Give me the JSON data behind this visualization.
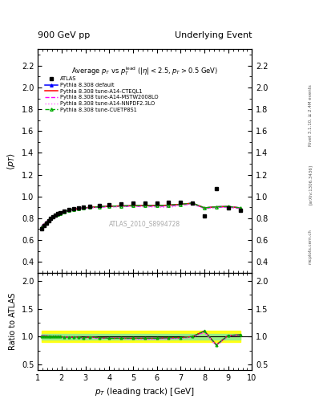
{
  "title_left": "900 GeV pp",
  "title_right": "Underlying Event",
  "plot_title": "Average $p_T$ vs $p_T^{\\mathrm{lead}}$ ($|\\eta| < 2.5$, $p_T > 0.5$ GeV)",
  "xlabel": "$p_T$ (leading track) [GeV]",
  "ylabel_main": "$\\langle p_T \\rangle$",
  "ylabel_ratio": "Ratio to ATLAS",
  "watermark": "ATLAS_2010_S8994728",
  "right_label1": "Rivet 3.1.10, ≥ 2.4M events",
  "right_label2": "[arXiv:1306.3436]",
  "right_label3": "mcplots.cern.ch",
  "xlim": [
    1,
    10
  ],
  "ylim_main": [
    0.3,
    2.35
  ],
  "ylim_ratio": [
    0.4,
    2.15
  ],
  "yticks_main": [
    0.4,
    0.6,
    0.8,
    1.0,
    1.2,
    1.4,
    1.6,
    1.8,
    2.0,
    2.2
  ],
  "yticks_ratio": [
    0.5,
    1.0,
    1.5,
    2.0
  ],
  "atlas_x": [
    1.15,
    1.25,
    1.35,
    1.45,
    1.55,
    1.65,
    1.75,
    1.85,
    1.95,
    2.1,
    2.3,
    2.5,
    2.7,
    2.9,
    3.2,
    3.6,
    4.0,
    4.5,
    5.0,
    5.5,
    6.0,
    6.5,
    7.0,
    7.5,
    8.0,
    8.5,
    9.0,
    9.5
  ],
  "atlas_y": [
    0.705,
    0.73,
    0.752,
    0.775,
    0.796,
    0.815,
    0.83,
    0.84,
    0.85,
    0.865,
    0.878,
    0.888,
    0.895,
    0.903,
    0.908,
    0.92,
    0.928,
    0.932,
    0.938,
    0.94,
    0.942,
    0.943,
    0.95,
    0.942,
    0.82,
    1.07,
    0.892,
    0.87
  ],
  "default_x": [
    1.15,
    1.25,
    1.35,
    1.45,
    1.55,
    1.65,
    1.75,
    1.85,
    1.95,
    2.1,
    2.3,
    2.5,
    2.7,
    2.9,
    3.2,
    3.6,
    4.0,
    4.5,
    5.0,
    5.5,
    6.0,
    6.5,
    7.0,
    7.5,
    8.0,
    8.5,
    9.0,
    9.5
  ],
  "default_y": [
    0.718,
    0.742,
    0.762,
    0.781,
    0.799,
    0.815,
    0.828,
    0.838,
    0.847,
    0.86,
    0.872,
    0.881,
    0.888,
    0.894,
    0.9,
    0.906,
    0.91,
    0.913,
    0.915,
    0.916,
    0.916,
    0.92,
    0.928,
    0.938,
    0.895,
    0.905,
    0.908,
    0.895
  ],
  "cteql1_x": [
    1.15,
    1.25,
    1.35,
    1.45,
    1.55,
    1.65,
    1.75,
    1.85,
    1.95,
    2.1,
    2.3,
    2.5,
    2.7,
    2.9,
    3.2,
    3.6,
    4.0,
    4.5,
    5.0,
    5.5,
    6.0,
    6.5,
    7.0,
    7.5,
    8.0,
    8.5,
    9.0,
    9.5
  ],
  "cteql1_y": [
    0.718,
    0.742,
    0.762,
    0.781,
    0.799,
    0.815,
    0.828,
    0.838,
    0.847,
    0.86,
    0.872,
    0.881,
    0.888,
    0.894,
    0.9,
    0.906,
    0.91,
    0.913,
    0.915,
    0.916,
    0.916,
    0.92,
    0.928,
    0.938,
    0.895,
    0.905,
    0.908,
    0.895
  ],
  "mstw_x": [
    1.15,
    1.25,
    1.35,
    1.45,
    1.55,
    1.65,
    1.75,
    1.85,
    1.95,
    2.1,
    2.3,
    2.5,
    2.7,
    2.9,
    3.2,
    3.6,
    4.0,
    4.5,
    5.0,
    5.5,
    6.0,
    6.5,
    7.0,
    7.5,
    8.0,
    8.5,
    9.0,
    9.5
  ],
  "mstw_y": [
    0.725,
    0.748,
    0.768,
    0.787,
    0.804,
    0.818,
    0.83,
    0.84,
    0.848,
    0.86,
    0.871,
    0.879,
    0.885,
    0.891,
    0.896,
    0.901,
    0.905,
    0.907,
    0.908,
    0.908,
    0.908,
    0.911,
    0.92,
    0.932,
    0.89,
    0.9,
    0.902,
    0.89
  ],
  "nnpdf_x": [
    1.15,
    1.25,
    1.35,
    1.45,
    1.55,
    1.65,
    1.75,
    1.85,
    1.95,
    2.1,
    2.3,
    2.5,
    2.7,
    2.9,
    3.2,
    3.6,
    4.0,
    4.5,
    5.0,
    5.5,
    6.0,
    6.5,
    7.0,
    7.5,
    8.0,
    8.5,
    9.0,
    9.5
  ],
  "nnpdf_y": [
    0.725,
    0.748,
    0.768,
    0.787,
    0.804,
    0.818,
    0.83,
    0.84,
    0.848,
    0.86,
    0.871,
    0.879,
    0.885,
    0.891,
    0.896,
    0.901,
    0.905,
    0.907,
    0.908,
    0.905,
    0.903,
    0.898,
    0.92,
    0.932,
    0.89,
    0.9,
    0.91,
    0.897
  ],
  "cuetp_x": [
    1.15,
    1.25,
    1.35,
    1.45,
    1.55,
    1.65,
    1.75,
    1.85,
    1.95,
    2.1,
    2.3,
    2.5,
    2.7,
    2.9,
    3.2,
    3.6,
    4.0,
    4.5,
    5.0,
    5.5,
    6.0,
    6.5,
    7.0,
    7.5,
    8.0,
    8.5,
    9.0,
    9.5
  ],
  "cuetp_y": [
    0.718,
    0.742,
    0.762,
    0.781,
    0.799,
    0.815,
    0.828,
    0.838,
    0.847,
    0.86,
    0.872,
    0.881,
    0.888,
    0.894,
    0.9,
    0.906,
    0.91,
    0.913,
    0.915,
    0.916,
    0.916,
    0.92,
    0.928,
    0.938,
    0.895,
    0.905,
    0.908,
    0.895
  ],
  "ratio_default_y": [
    1.0,
    1.01,
    1.01,
    1.0,
    1.0,
    1.0,
    1.0,
    1.0,
    1.0,
    0.99,
    0.99,
    0.99,
    0.99,
    0.98,
    0.99,
    0.98,
    0.97,
    0.97,
    0.97,
    0.97,
    0.97,
    0.98,
    0.98,
    1.0,
    1.1,
    0.85,
    1.02,
    1.03
  ],
  "ratio_cteql1_y": [
    1.0,
    1.01,
    1.01,
    1.0,
    1.0,
    1.0,
    1.0,
    1.0,
    1.0,
    0.99,
    0.99,
    0.99,
    0.99,
    0.98,
    0.99,
    0.98,
    0.97,
    0.97,
    0.97,
    0.97,
    0.97,
    0.98,
    0.98,
    1.0,
    1.1,
    0.85,
    1.02,
    1.03
  ],
  "ratio_mstw_y": [
    1.02,
    1.02,
    1.02,
    1.01,
    1.01,
    1.0,
    1.0,
    1.0,
    1.0,
    0.99,
    0.99,
    0.99,
    0.98,
    0.98,
    0.98,
    0.97,
    0.97,
    0.97,
    0.96,
    0.96,
    0.96,
    0.97,
    0.97,
    0.99,
    1.08,
    0.84,
    1.01,
    1.02
  ],
  "ratio_nnpdf_y": [
    1.02,
    1.02,
    1.02,
    1.01,
    1.01,
    1.0,
    1.0,
    1.0,
    1.0,
    0.99,
    0.99,
    0.99,
    0.98,
    0.98,
    0.98,
    0.97,
    0.97,
    0.97,
    0.96,
    0.95,
    0.95,
    0.95,
    0.97,
    0.99,
    1.08,
    0.84,
    1.02,
    1.03
  ],
  "ratio_cuetp_y": [
    1.0,
    1.01,
    1.01,
    1.0,
    1.0,
    1.0,
    1.0,
    1.0,
    1.0,
    0.99,
    0.99,
    0.99,
    0.99,
    0.98,
    0.99,
    0.98,
    0.97,
    0.97,
    0.97,
    0.97,
    0.97,
    0.98,
    0.98,
    1.0,
    1.1,
    0.85,
    1.02,
    1.03
  ],
  "band_green_inner": 0.05,
  "band_yellow_outer": 0.1,
  "color_atlas": "black",
  "color_default": "blue",
  "color_cteql1": "red",
  "color_mstw": "#ff00ff",
  "color_nnpdf": "#ff66ff",
  "color_cuetp": "#00aa00",
  "legend_entries": [
    "ATLAS",
    "Pythia 8.308 default",
    "Pythia 8.308 tune-A14-CTEQL1",
    "Pythia 8.308 tune-A14-MSTW2008LO",
    "Pythia 8.308 tune-A14-NNPDF2.3LO",
    "Pythia 8.308 tune-CUETP8S1"
  ]
}
